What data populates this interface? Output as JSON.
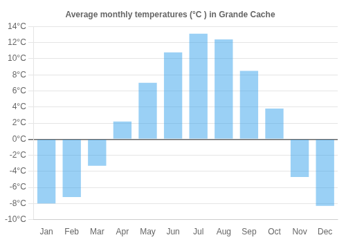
{
  "chart_data": {
    "type": "bar",
    "title": "Average monthly temperatures (°C ) in Grande Cache",
    "categories": [
      "Jan",
      "Feb",
      "Mar",
      "Apr",
      "May",
      "Jun",
      "Jul",
      "Aug",
      "Sep",
      "Oct",
      "Nov",
      "Dec"
    ],
    "values": [
      -8.0,
      -7.2,
      -3.3,
      2.2,
      7.0,
      10.8,
      13.1,
      12.4,
      8.5,
      3.8,
      -4.7,
      -8.3
    ],
    "ylim": [
      -10,
      14
    ],
    "yticks": [
      {
        "value": -10,
        "label": "-10°C"
      },
      {
        "value": -8,
        "label": "-8°C"
      },
      {
        "value": -6,
        "label": "-6°C"
      },
      {
        "value": -4,
        "label": "-4°C"
      },
      {
        "value": -2,
        "label": "-2°C"
      },
      {
        "value": 0,
        "label": "0°C"
      },
      {
        "value": 2,
        "label": "2°C"
      },
      {
        "value": 4,
        "label": "4°C"
      },
      {
        "value": 6,
        "label": "6°C"
      },
      {
        "value": 8,
        "label": "8°C"
      },
      {
        "value": 10,
        "label": "10°C"
      },
      {
        "value": 12,
        "label": "12°C"
      },
      {
        "value": 14,
        "label": "14°C"
      }
    ],
    "grid": true
  }
}
